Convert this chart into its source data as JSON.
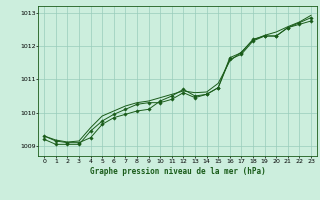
{
  "title": "Graphe pression niveau de la mer (hPa)",
  "bg_color": "#cceedd",
  "grid_color": "#99ccbb",
  "line_color": "#1a5c1a",
  "xlim": [
    -0.5,
    23.5
  ],
  "ylim": [
    1008.7,
    1013.2
  ],
  "yticks": [
    1009,
    1010,
    1011,
    1012,
    1013
  ],
  "xticks": [
    0,
    1,
    2,
    3,
    4,
    5,
    6,
    7,
    8,
    9,
    10,
    11,
    12,
    13,
    14,
    15,
    16,
    17,
    18,
    19,
    20,
    21,
    22,
    23
  ],
  "line1": [
    1009.3,
    1009.15,
    1009.1,
    1009.1,
    1009.25,
    1009.65,
    1009.85,
    1009.95,
    1010.05,
    1010.1,
    1010.35,
    1010.5,
    1010.7,
    1010.5,
    1010.55,
    1010.75,
    1011.6,
    1011.75,
    1012.15,
    1012.3,
    1012.3,
    1012.55,
    1012.7,
    1012.85
  ],
  "line2": [
    1009.2,
    1009.05,
    1009.05,
    1009.05,
    1009.45,
    1009.75,
    1009.95,
    1010.1,
    1010.25,
    1010.3,
    1010.3,
    1010.4,
    1010.6,
    1010.45,
    1010.55,
    1010.75,
    1011.65,
    1011.8,
    1012.2,
    1012.3,
    1012.3,
    1012.55,
    1012.65,
    1012.75
  ],
  "line3": [
    1009.3,
    1009.18,
    1009.12,
    1009.15,
    1009.55,
    1009.9,
    1010.05,
    1010.2,
    1010.3,
    1010.35,
    1010.45,
    1010.55,
    1010.65,
    1010.6,
    1010.62,
    1010.88,
    1011.55,
    1011.82,
    1012.18,
    1012.32,
    1012.42,
    1012.58,
    1012.72,
    1012.92
  ],
  "figsize": [
    3.2,
    2.0
  ],
  "dpi": 100
}
